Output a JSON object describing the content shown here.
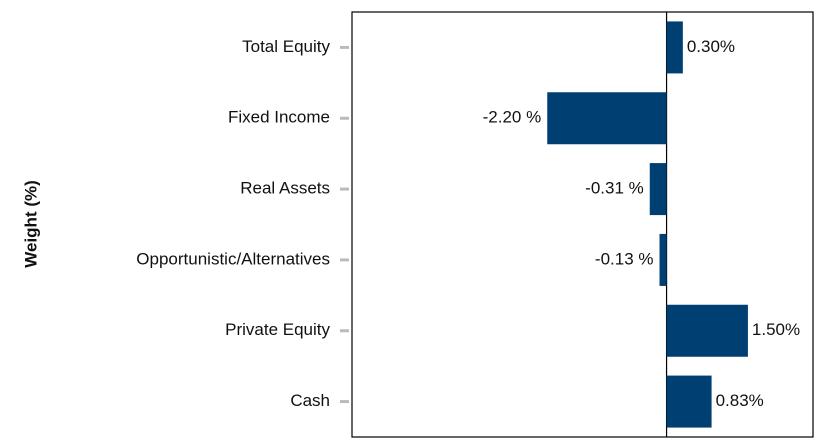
{
  "chart_data": {
    "type": "hbar",
    "y_label": "Weight (%)",
    "categories": [
      "Total Equity",
      "Fixed Income",
      "Real Assets",
      "Opportunistic/Alternatives",
      "Private Equity",
      "Cash"
    ],
    "values": [
      0.3,
      -2.2,
      -0.31,
      -0.13,
      1.5,
      0.83
    ],
    "value_labels": [
      "0.30%",
      "-2.20 %",
      "-0.31 %",
      "-0.13 %",
      "1.50%",
      "0.83%"
    ],
    "color": "#003f72",
    "xlim": [
      -5.8,
      2.7
    ]
  }
}
